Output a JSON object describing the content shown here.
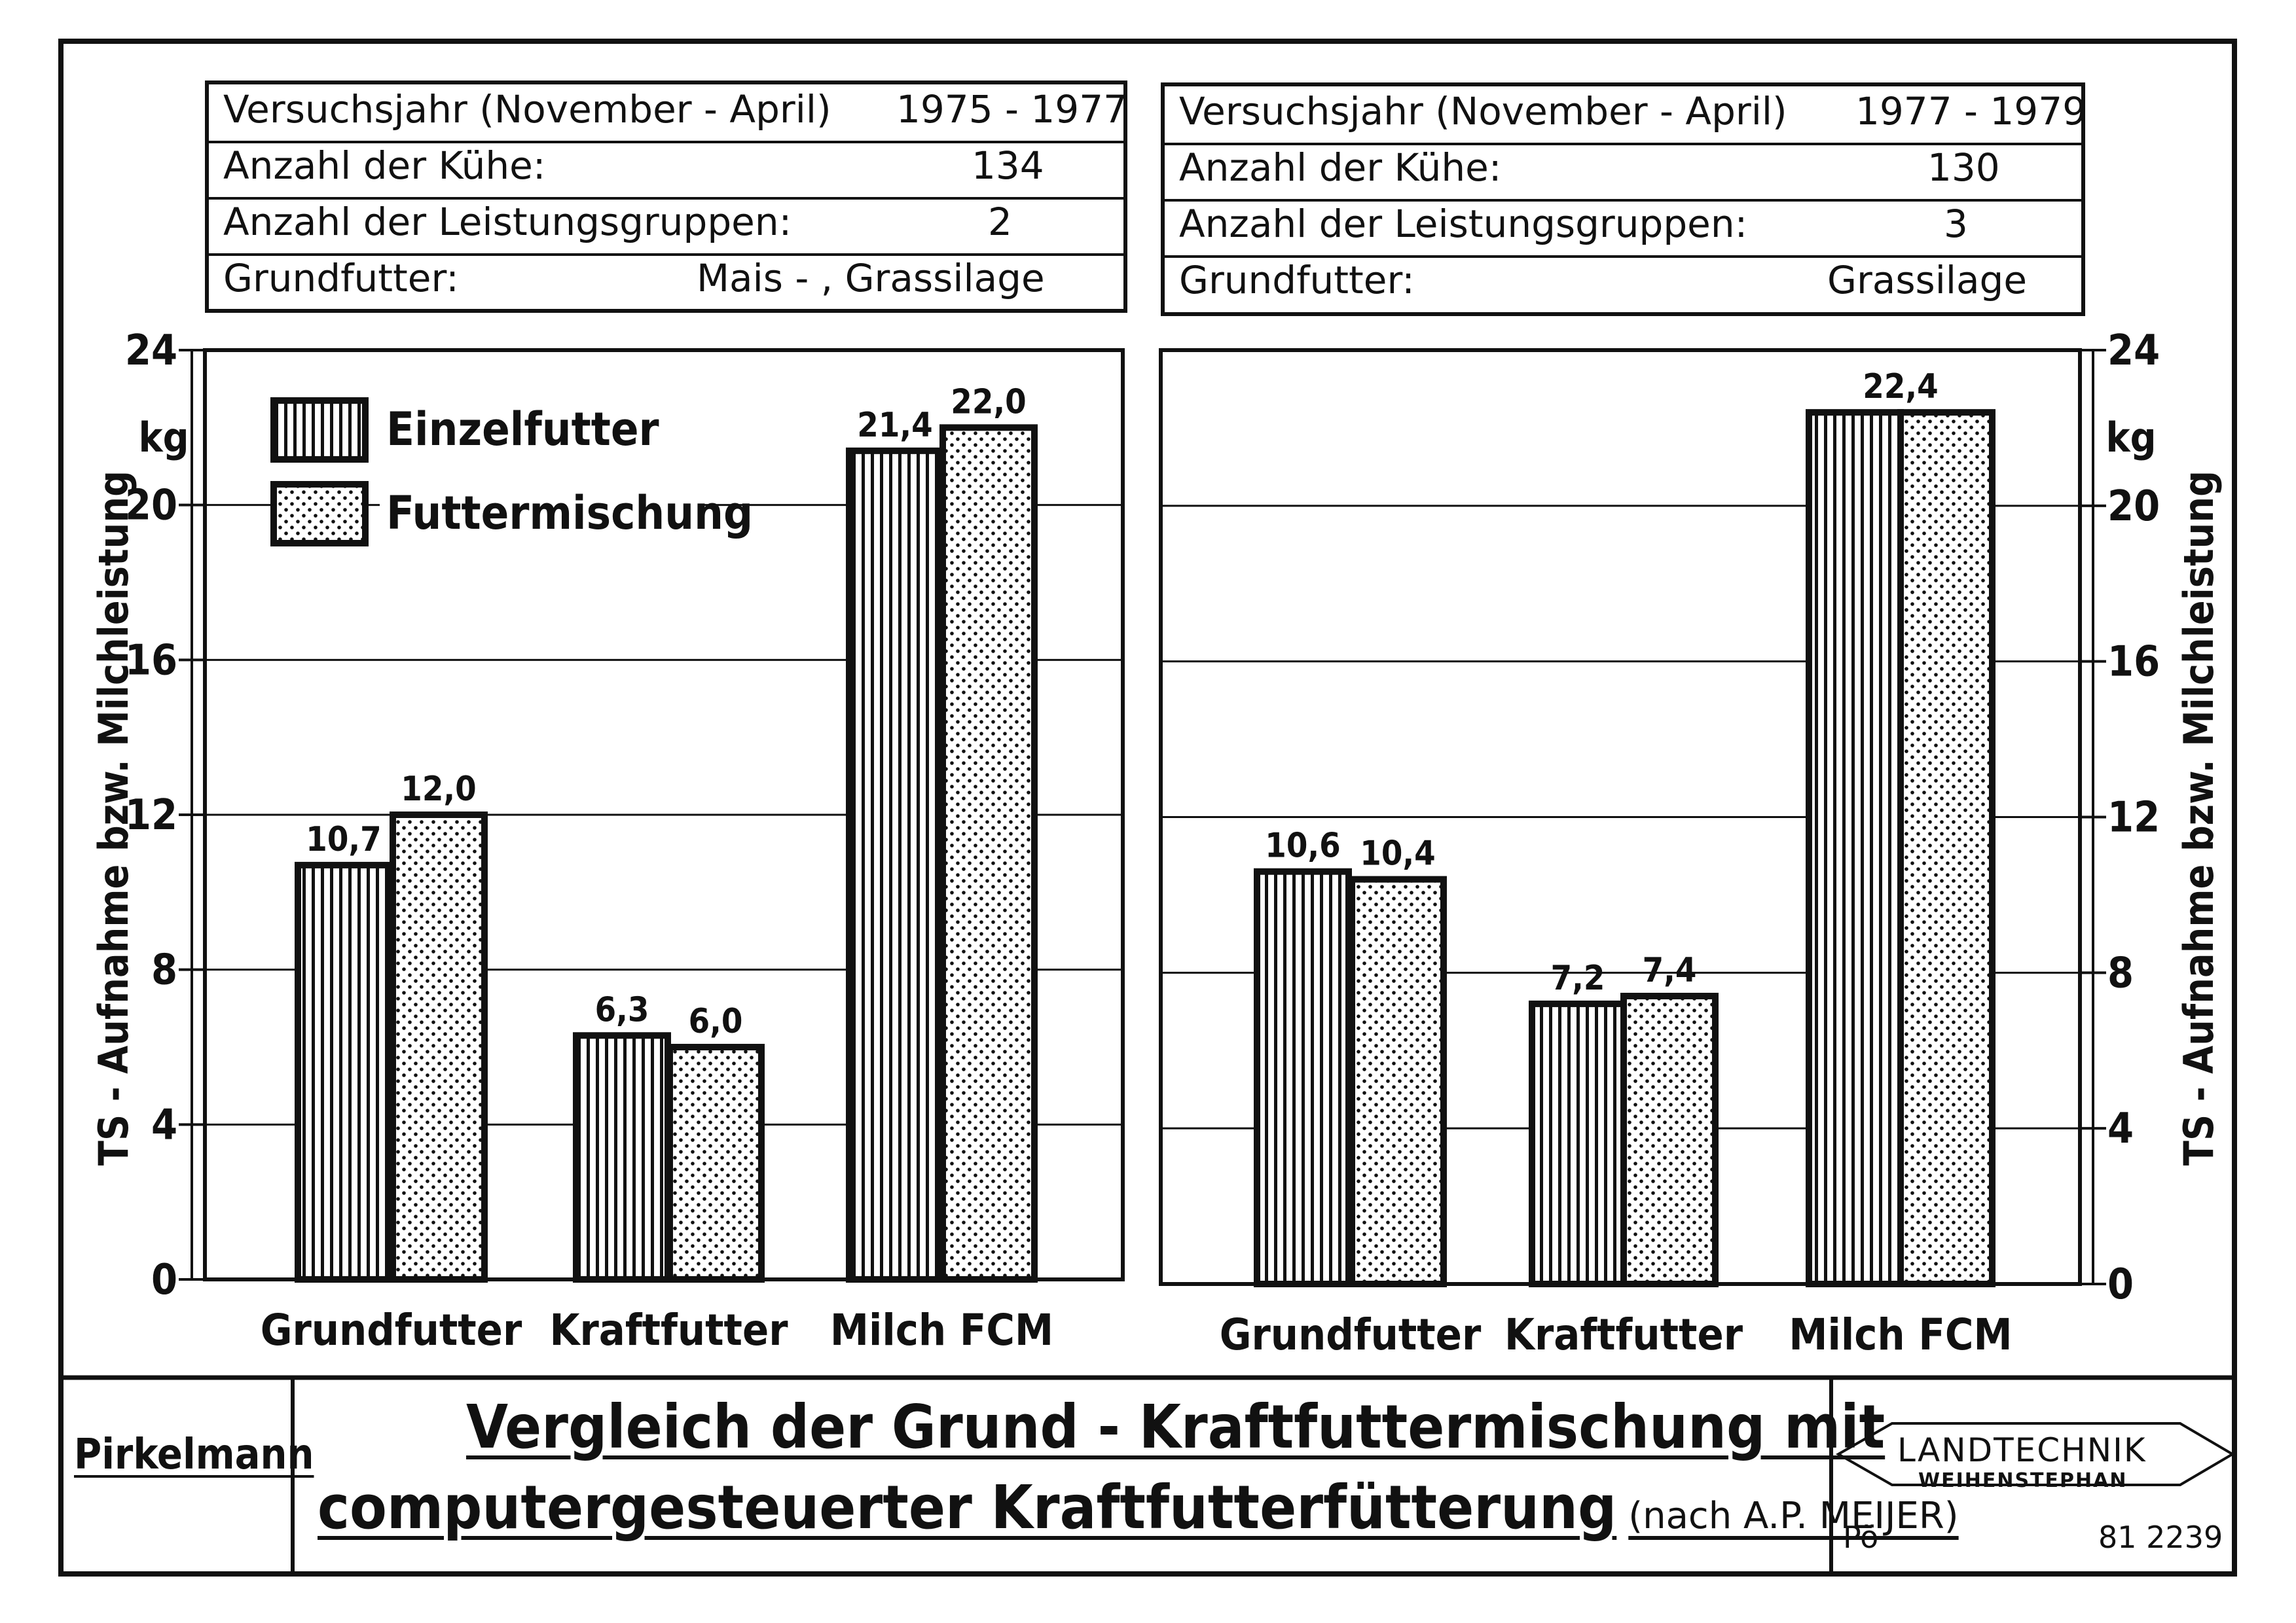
{
  "header_left": {
    "rows": [
      {
        "label": "Versuchsjahr (November - April)",
        "value": "1975 - 1977"
      },
      {
        "label": "Anzahl der Kühe:",
        "value": "134"
      },
      {
        "label": "Anzahl der Leistungsgruppen:",
        "value": "2"
      },
      {
        "label": "Grundfutter:",
        "value": "Mais - , Grassilage"
      }
    ]
  },
  "header_right": {
    "rows": [
      {
        "label": "Versuchsjahr (November - April)",
        "value": "1977 - 1979"
      },
      {
        "label": "Anzahl der Kühe:",
        "value": "130"
      },
      {
        "label": "Anzahl der Leistungsgruppen:",
        "value": "3"
      },
      {
        "label": "Grundfutter:",
        "value": "Grassilage"
      }
    ]
  },
  "axis": {
    "ylabel": "TS - Aufnahme bzw. Milchleistung",
    "unit": "kg",
    "ylim": [
      0,
      24
    ],
    "ticks": [
      "0",
      "4",
      "8",
      "12",
      "16",
      "20",
      "24"
    ]
  },
  "legend": {
    "items": [
      "Einzelfutter",
      "Futtermischung"
    ]
  },
  "chart_data": [
    {
      "type": "bar",
      "categories": [
        "Grundfutter",
        "Kraftfutter",
        "Milch FCM"
      ],
      "series": [
        {
          "name": "Einzelfutter",
          "values": [
            10.7,
            6.3,
            21.4
          ],
          "labels": [
            "10,7",
            "6,3",
            "21,4"
          ]
        },
        {
          "name": "Futtermischung",
          "values": [
            12.0,
            6.0,
            22.0
          ],
          "labels": [
            "12,0",
            "6,0",
            "22,0"
          ]
        }
      ],
      "ylabel": "TS - Aufnahme bzw. Milchleistung",
      "unit": "kg",
      "ylim": [
        0,
        24
      ],
      "yticks": [
        0,
        4,
        8,
        12,
        16,
        20,
        24
      ],
      "grid": true,
      "legend": "top-left"
    },
    {
      "type": "bar",
      "categories": [
        "Grundfutter",
        "Kraftfutter",
        "Milch FCM"
      ],
      "series": [
        {
          "name": "Einzelfutter",
          "values": [
            10.6,
            7.2,
            22.4
          ],
          "labels": [
            "10,6",
            "7,2",
            ""
          ]
        },
        {
          "name": "Futtermischung",
          "values": [
            10.4,
            7.4,
            22.4
          ],
          "labels": [
            "10,4",
            "7,4",
            ""
          ]
        }
      ],
      "shared_labels": [
        "",
        "",
        "22,4"
      ],
      "ylabel": "TS - Aufnahme bzw. Milchleistung",
      "unit": "kg",
      "ylim": [
        0,
        24
      ],
      "yticks": [
        0,
        4,
        8,
        12,
        16,
        20,
        24
      ],
      "grid": true
    }
  ],
  "footer": {
    "author": "Pirkelmann",
    "title_line1": "Vergleich der Grund - Kraftfuttermischung mit",
    "title_line2": "computergesteuerter Kraftfutterfütterung",
    "source": "(nach A.P. MEIJER)",
    "stamp_top": "LANDTECHNIK",
    "stamp_bottom": "WEIHENSTEPHAN",
    "code_left": "Pö",
    "code_right": "81 2239"
  }
}
